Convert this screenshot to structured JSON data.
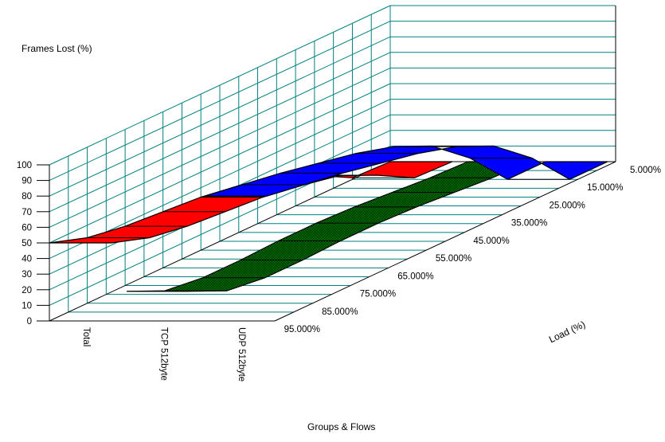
{
  "chart_data": {
    "type": "area",
    "variant": "3d-ribbon-surface",
    "title": "",
    "ylabel": "Frames Lost (%)",
    "xlabel": "Groups & Flows",
    "zlabel": "Load (%)",
    "ylim": [
      0,
      100
    ],
    "y_tick_step": 10,
    "grid": true,
    "grid_color": "#008080",
    "background": "#ffffff",
    "loads": [
      95,
      85,
      75,
      65,
      55,
      45,
      35,
      25,
      15,
      5
    ],
    "load_tick_labels": [
      "5.000%",
      "15.000%",
      "25.000%",
      "35.000%",
      "45.000%",
      "55.000%",
      "65.000%",
      "75.000%",
      "85.000%",
      "95.000%"
    ],
    "categories": [
      "Total",
      "TCP 512byte",
      "UDP 512byte"
    ],
    "series": [
      {
        "name": "Total",
        "color": "#ff0000",
        "fill_style": "solid",
        "values": [
          50,
          42,
          38,
          36,
          34,
          30,
          25,
          14,
          1,
          0
        ]
      },
      {
        "name": "TCP 512byte",
        "color": "#008000",
        "fill_style": "dithered",
        "values": [
          19,
          8,
          5,
          5,
          6,
          6,
          5,
          3,
          1,
          0
        ]
      },
      {
        "name": "UDP 512byte",
        "color": "#0000ff",
        "fill_style": "solid",
        "values": [
          80,
          76,
          72,
          67,
          62,
          55,
          44,
          25,
          0,
          0
        ]
      }
    ]
  }
}
